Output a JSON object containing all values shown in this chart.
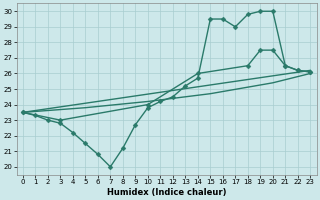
{
  "xlabel": "Humidex (Indice chaleur)",
  "xlim": [
    -0.5,
    23.5
  ],
  "ylim": [
    19.5,
    30.5
  ],
  "xticks": [
    0,
    1,
    2,
    3,
    4,
    5,
    6,
    7,
    8,
    9,
    10,
    11,
    12,
    13,
    14,
    15,
    16,
    17,
    18,
    19,
    20,
    21,
    22,
    23
  ],
  "yticks": [
    20,
    21,
    22,
    23,
    24,
    25,
    26,
    27,
    28,
    29,
    30
  ],
  "bg_color": "#cde8ea",
  "grid_color": "#a8cdd0",
  "line_color": "#2a7a6a",
  "series": [
    {
      "x": [
        0,
        1,
        2,
        3,
        4,
        5,
        6,
        7,
        8,
        9,
        10,
        11,
        12,
        13,
        14,
        15,
        16,
        17,
        18,
        19,
        20,
        21,
        22,
        23
      ],
      "y": [
        23.5,
        23.3,
        23.0,
        22.8,
        22.2,
        21.5,
        20.8,
        20.0,
        21.2,
        22.7,
        23.8,
        24.2,
        24.5,
        25.2,
        25.7,
        29.5,
        29.5,
        29.0,
        29.8,
        30.0,
        30.0,
        26.5,
        26.2,
        26.1
      ],
      "marker": "D",
      "markersize": 2.5,
      "linewidth": 1.0
    },
    {
      "x": [
        0,
        23
      ],
      "y": [
        23.5,
        26.2
      ],
      "marker": null,
      "markersize": 0,
      "linewidth": 1.0
    },
    {
      "x": [
        0,
        5,
        10,
        15,
        20,
        23
      ],
      "y": [
        23.5,
        23.8,
        24.2,
        24.7,
        25.4,
        26.0
      ],
      "marker": null,
      "markersize": 0,
      "linewidth": 1.0
    },
    {
      "x": [
        0,
        3,
        10,
        14,
        18,
        19,
        20,
        21,
        22,
        23
      ],
      "y": [
        23.5,
        23.0,
        24.0,
        26.0,
        26.5,
        27.5,
        27.5,
        26.5,
        26.2,
        26.1
      ],
      "marker": "D",
      "markersize": 2.5,
      "linewidth": 1.0
    }
  ]
}
